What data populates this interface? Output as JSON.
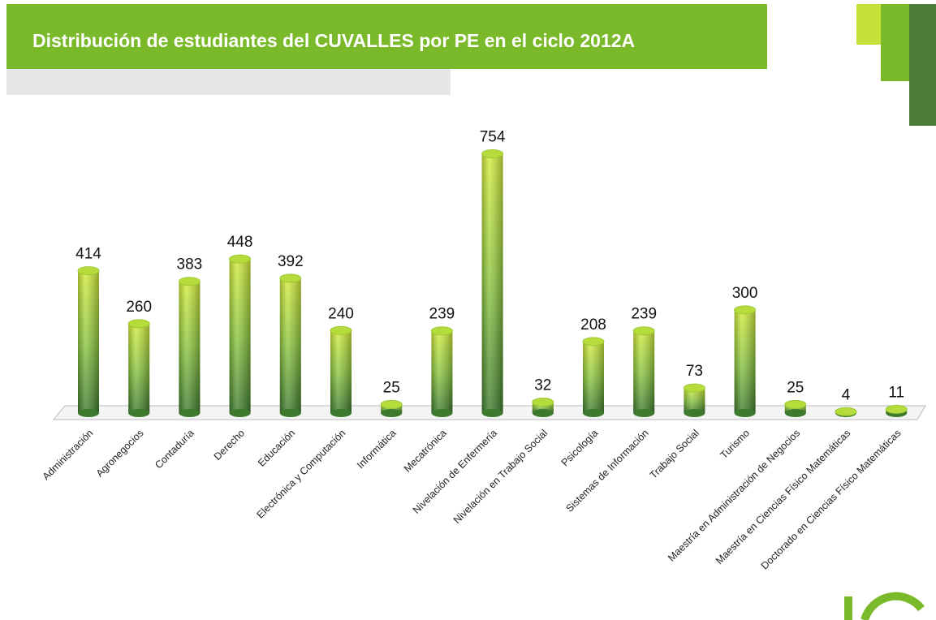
{
  "chart_data": {
    "type": "bar",
    "title": "Distribución de estudiantes del CUVALLES por PE en el ciclo 2012A",
    "categories": [
      "Administración",
      "Agronegocios",
      "Contaduría",
      "Derecho",
      "Educación",
      "Electrónica y Computación",
      "Informática",
      "Mecatrónica",
      "Nivelación de Enfermería",
      "Nivelación en Trabajo Social",
      "Psicología",
      "Sistemas de Información",
      "Trabajo Social",
      "Turismo",
      "Maestría en Administración de Negocios",
      "Maestría en Ciencias Físico Matemáticas",
      "Doctorado en Ciencias Físico Matemáticas"
    ],
    "values": [
      414,
      260,
      383,
      448,
      392,
      240,
      25,
      239,
      754,
      32,
      208,
      239,
      73,
      300,
      25,
      4,
      11
    ],
    "color": "#8cc63f",
    "ylim": [
      0,
      800
    ]
  }
}
